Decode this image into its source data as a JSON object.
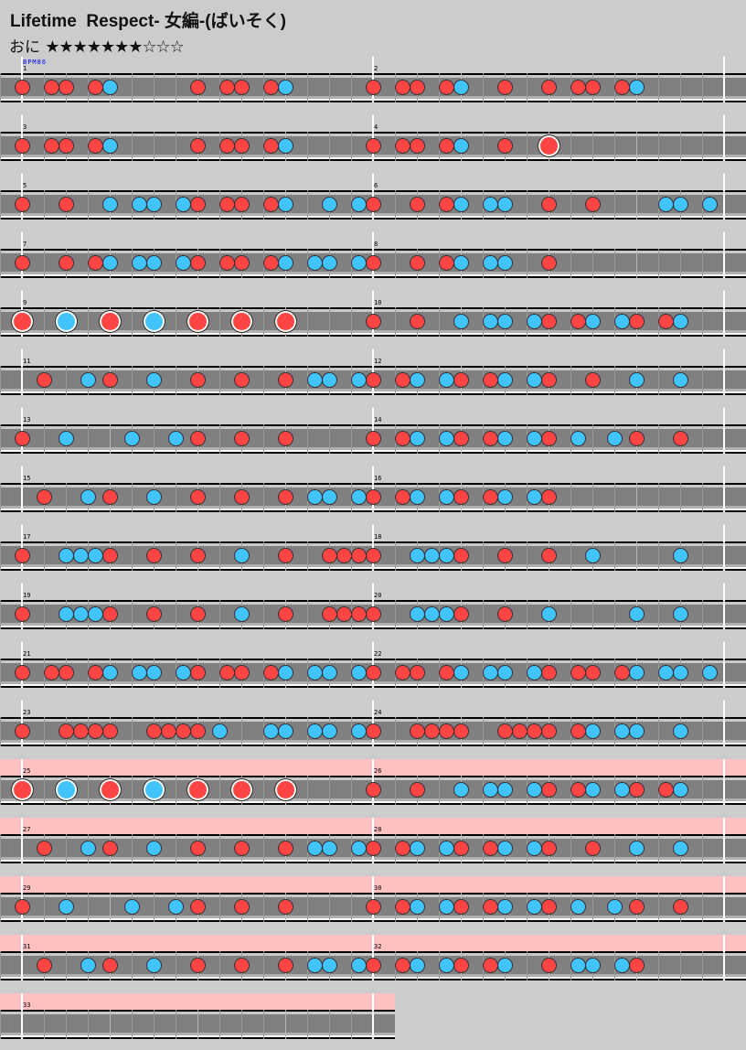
{
  "header": {
    "title": "Lifetime  Respect- 女編-(ばいそく)",
    "difficulty": "おに",
    "stars": {
      "filled": 7,
      "total": 10,
      "text": "★★★★★★★☆☆☆"
    }
  },
  "bpm_label": "BPM86",
  "colors": {
    "don": "#ff4444",
    "ka": "#44c4ff",
    "gogo_band": "#ffc0c0",
    "lane": "#808080",
    "background": "#cccccc"
  },
  "note_types": {
    "d": "don",
    "k": "ka",
    "D": "big-don",
    "K": "big-ka"
  },
  "divisions_per_measure": 48,
  "gogo_from_measure": 25,
  "measures": [
    {
      "num": "1",
      "notes": [
        [
          0,
          "d"
        ],
        [
          4,
          "d"
        ],
        [
          6,
          "d"
        ],
        [
          10,
          "d"
        ],
        [
          12,
          "k"
        ],
        [
          24,
          "d"
        ],
        [
          28,
          "d"
        ],
        [
          30,
          "d"
        ],
        [
          34,
          "d"
        ],
        [
          36,
          "k"
        ]
      ]
    },
    {
      "num": "2",
      "notes": [
        [
          0,
          "d"
        ],
        [
          4,
          "d"
        ],
        [
          6,
          "d"
        ],
        [
          10,
          "d"
        ],
        [
          12,
          "k"
        ],
        [
          18,
          "d"
        ],
        [
          24,
          "d"
        ],
        [
          28,
          "d"
        ],
        [
          30,
          "d"
        ],
        [
          34,
          "d"
        ],
        [
          36,
          "k"
        ]
      ]
    },
    {
      "num": "3",
      "notes": [
        [
          0,
          "d"
        ],
        [
          4,
          "d"
        ],
        [
          6,
          "d"
        ],
        [
          10,
          "d"
        ],
        [
          12,
          "k"
        ],
        [
          24,
          "d"
        ],
        [
          28,
          "d"
        ],
        [
          30,
          "d"
        ],
        [
          34,
          "d"
        ],
        [
          36,
          "k"
        ]
      ]
    },
    {
      "num": "4",
      "notes": [
        [
          0,
          "d"
        ],
        [
          4,
          "d"
        ],
        [
          6,
          "d"
        ],
        [
          10,
          "d"
        ],
        [
          12,
          "k"
        ],
        [
          18,
          "d"
        ],
        [
          24,
          "D"
        ]
      ]
    },
    {
      "num": "5",
      "notes": [
        [
          0,
          "d"
        ],
        [
          6,
          "d"
        ],
        [
          12,
          "k"
        ],
        [
          16,
          "k"
        ],
        [
          18,
          "k"
        ],
        [
          22,
          "k"
        ],
        [
          24,
          "d"
        ],
        [
          28,
          "d"
        ],
        [
          30,
          "d"
        ],
        [
          34,
          "d"
        ],
        [
          36,
          "k"
        ],
        [
          42,
          "k"
        ],
        [
          46,
          "k"
        ]
      ]
    },
    {
      "num": "6",
      "notes": [
        [
          0,
          "d"
        ],
        [
          6,
          "d"
        ],
        [
          10,
          "d"
        ],
        [
          12,
          "k"
        ],
        [
          16,
          "k"
        ],
        [
          18,
          "k"
        ],
        [
          24,
          "d"
        ],
        [
          30,
          "d"
        ],
        [
          40,
          "k"
        ],
        [
          42,
          "k"
        ],
        [
          46,
          "k"
        ]
      ]
    },
    {
      "num": "7",
      "notes": [
        [
          0,
          "d"
        ],
        [
          6,
          "d"
        ],
        [
          10,
          "d"
        ],
        [
          12,
          "k"
        ],
        [
          16,
          "k"
        ],
        [
          18,
          "k"
        ],
        [
          22,
          "k"
        ],
        [
          24,
          "d"
        ],
        [
          28,
          "d"
        ],
        [
          30,
          "d"
        ],
        [
          34,
          "d"
        ],
        [
          36,
          "k"
        ],
        [
          40,
          "k"
        ],
        [
          42,
          "k"
        ],
        [
          46,
          "k"
        ]
      ]
    },
    {
      "num": "8",
      "notes": [
        [
          0,
          "d"
        ],
        [
          6,
          "d"
        ],
        [
          10,
          "d"
        ],
        [
          12,
          "k"
        ],
        [
          16,
          "k"
        ],
        [
          18,
          "k"
        ],
        [
          24,
          "d"
        ]
      ]
    },
    {
      "num": "9",
      "notes": [
        [
          0,
          "D"
        ],
        [
          6,
          "K"
        ],
        [
          12,
          "D"
        ],
        [
          18,
          "K"
        ],
        [
          24,
          "D"
        ],
        [
          30,
          "D"
        ],
        [
          36,
          "D"
        ]
      ]
    },
    {
      "num": "10",
      "notes": [
        [
          0,
          "d"
        ],
        [
          6,
          "d"
        ],
        [
          12,
          "k"
        ],
        [
          16,
          "k"
        ],
        [
          18,
          "k"
        ],
        [
          22,
          "k"
        ],
        [
          24,
          "d"
        ],
        [
          28,
          "d"
        ],
        [
          30,
          "k"
        ],
        [
          34,
          "k"
        ],
        [
          36,
          "d"
        ],
        [
          40,
          "d"
        ],
        [
          42,
          "k"
        ]
      ]
    },
    {
      "num": "11",
      "notes": [
        [
          3,
          "d"
        ],
        [
          9,
          "k"
        ],
        [
          12,
          "d"
        ],
        [
          18,
          "k"
        ],
        [
          24,
          "d"
        ],
        [
          30,
          "d"
        ],
        [
          36,
          "d"
        ],
        [
          40,
          "k"
        ],
        [
          42,
          "k"
        ],
        [
          46,
          "k"
        ]
      ]
    },
    {
      "num": "12",
      "notes": [
        [
          0,
          "d"
        ],
        [
          4,
          "d"
        ],
        [
          6,
          "k"
        ],
        [
          10,
          "k"
        ],
        [
          12,
          "d"
        ],
        [
          16,
          "d"
        ],
        [
          18,
          "k"
        ],
        [
          22,
          "k"
        ],
        [
          24,
          "d"
        ],
        [
          30,
          "d"
        ],
        [
          36,
          "k"
        ],
        [
          42,
          "k"
        ]
      ]
    },
    {
      "num": "13",
      "notes": [
        [
          0,
          "d"
        ],
        [
          6,
          "k"
        ],
        [
          15,
          "k"
        ],
        [
          21,
          "k"
        ],
        [
          24,
          "d"
        ],
        [
          30,
          "d"
        ],
        [
          36,
          "d"
        ]
      ]
    },
    {
      "num": "14",
      "notes": [
        [
          0,
          "d"
        ],
        [
          4,
          "d"
        ],
        [
          6,
          "k"
        ],
        [
          10,
          "k"
        ],
        [
          12,
          "d"
        ],
        [
          16,
          "d"
        ],
        [
          18,
          "k"
        ],
        [
          22,
          "k"
        ],
        [
          24,
          "d"
        ],
        [
          28,
          "k"
        ],
        [
          33,
          "k"
        ],
        [
          36,
          "d"
        ],
        [
          42,
          "d"
        ]
      ]
    },
    {
      "num": "15",
      "notes": [
        [
          3,
          "d"
        ],
        [
          9,
          "k"
        ],
        [
          12,
          "d"
        ],
        [
          18,
          "k"
        ],
        [
          24,
          "d"
        ],
        [
          30,
          "d"
        ],
        [
          36,
          "d"
        ],
        [
          40,
          "k"
        ],
        [
          42,
          "k"
        ],
        [
          46,
          "k"
        ]
      ]
    },
    {
      "num": "16",
      "notes": [
        [
          0,
          "d"
        ],
        [
          4,
          "d"
        ],
        [
          6,
          "k"
        ],
        [
          10,
          "k"
        ],
        [
          12,
          "d"
        ],
        [
          16,
          "d"
        ],
        [
          18,
          "k"
        ],
        [
          22,
          "k"
        ],
        [
          24,
          "d"
        ]
      ]
    },
    {
      "num": "17",
      "notes": [
        [
          0,
          "d"
        ],
        [
          6,
          "k"
        ],
        [
          8,
          "k"
        ],
        [
          10,
          "k"
        ],
        [
          12,
          "d"
        ],
        [
          18,
          "d"
        ],
        [
          24,
          "d"
        ],
        [
          30,
          "k"
        ],
        [
          36,
          "d"
        ],
        [
          42,
          "d"
        ],
        [
          44,
          "d"
        ],
        [
          46,
          "d"
        ]
      ]
    },
    {
      "num": "18",
      "notes": [
        [
          0,
          "d"
        ],
        [
          6,
          "k"
        ],
        [
          8,
          "k"
        ],
        [
          10,
          "k"
        ],
        [
          12,
          "d"
        ],
        [
          18,
          "d"
        ],
        [
          24,
          "d"
        ],
        [
          30,
          "k"
        ],
        [
          42,
          "k"
        ]
      ]
    },
    {
      "num": "19",
      "notes": [
        [
          0,
          "d"
        ],
        [
          6,
          "k"
        ],
        [
          8,
          "k"
        ],
        [
          10,
          "k"
        ],
        [
          12,
          "d"
        ],
        [
          18,
          "d"
        ],
        [
          24,
          "d"
        ],
        [
          30,
          "k"
        ],
        [
          36,
          "d"
        ],
        [
          42,
          "d"
        ],
        [
          44,
          "d"
        ],
        [
          46,
          "d"
        ]
      ]
    },
    {
      "num": "20",
      "notes": [
        [
          0,
          "d"
        ],
        [
          6,
          "k"
        ],
        [
          8,
          "k"
        ],
        [
          10,
          "k"
        ],
        [
          12,
          "d"
        ],
        [
          18,
          "d"
        ],
        [
          24,
          "k"
        ],
        [
          36,
          "k"
        ],
        [
          42,
          "k"
        ]
      ]
    },
    {
      "num": "21",
      "notes": [
        [
          0,
          "d"
        ],
        [
          4,
          "d"
        ],
        [
          6,
          "d"
        ],
        [
          10,
          "d"
        ],
        [
          12,
          "k"
        ],
        [
          16,
          "k"
        ],
        [
          18,
          "k"
        ],
        [
          22,
          "k"
        ],
        [
          24,
          "d"
        ],
        [
          28,
          "d"
        ],
        [
          30,
          "d"
        ],
        [
          34,
          "d"
        ],
        [
          36,
          "k"
        ],
        [
          40,
          "k"
        ],
        [
          42,
          "k"
        ],
        [
          46,
          "k"
        ]
      ]
    },
    {
      "num": "22",
      "notes": [
        [
          0,
          "d"
        ],
        [
          4,
          "d"
        ],
        [
          6,
          "d"
        ],
        [
          10,
          "d"
        ],
        [
          12,
          "k"
        ],
        [
          16,
          "k"
        ],
        [
          18,
          "k"
        ],
        [
          22,
          "k"
        ],
        [
          24,
          "d"
        ],
        [
          28,
          "d"
        ],
        [
          30,
          "d"
        ],
        [
          34,
          "d"
        ],
        [
          36,
          "k"
        ],
        [
          40,
          "k"
        ],
        [
          42,
          "k"
        ],
        [
          46,
          "k"
        ]
      ]
    },
    {
      "num": "23",
      "notes": [
        [
          0,
          "d"
        ],
        [
          6,
          "d"
        ],
        [
          8,
          "d"
        ],
        [
          10,
          "d"
        ],
        [
          12,
          "d"
        ],
        [
          18,
          "d"
        ],
        [
          20,
          "d"
        ],
        [
          22,
          "d"
        ],
        [
          24,
          "d"
        ],
        [
          27,
          "k"
        ],
        [
          34,
          "k"
        ],
        [
          36,
          "k"
        ],
        [
          40,
          "k"
        ],
        [
          42,
          "k"
        ],
        [
          46,
          "k"
        ]
      ]
    },
    {
      "num": "24",
      "notes": [
        [
          0,
          "d"
        ],
        [
          6,
          "d"
        ],
        [
          8,
          "d"
        ],
        [
          10,
          "d"
        ],
        [
          12,
          "d"
        ],
        [
          18,
          "d"
        ],
        [
          20,
          "d"
        ],
        [
          22,
          "d"
        ],
        [
          24,
          "d"
        ],
        [
          28,
          "d"
        ],
        [
          30,
          "k"
        ],
        [
          34,
          "k"
        ],
        [
          36,
          "k"
        ],
        [
          42,
          "k"
        ]
      ]
    },
    {
      "num": "25",
      "notes": [
        [
          0,
          "D"
        ],
        [
          6,
          "K"
        ],
        [
          12,
          "D"
        ],
        [
          18,
          "K"
        ],
        [
          24,
          "D"
        ],
        [
          30,
          "D"
        ],
        [
          36,
          "D"
        ]
      ]
    },
    {
      "num": "26",
      "notes": [
        [
          0,
          "d"
        ],
        [
          6,
          "d"
        ],
        [
          12,
          "k"
        ],
        [
          16,
          "k"
        ],
        [
          18,
          "k"
        ],
        [
          22,
          "k"
        ],
        [
          24,
          "d"
        ],
        [
          28,
          "d"
        ],
        [
          30,
          "k"
        ],
        [
          34,
          "k"
        ],
        [
          36,
          "d"
        ],
        [
          40,
          "d"
        ],
        [
          42,
          "k"
        ]
      ]
    },
    {
      "num": "27",
      "notes": [
        [
          3,
          "d"
        ],
        [
          9,
          "k"
        ],
        [
          12,
          "d"
        ],
        [
          18,
          "k"
        ],
        [
          24,
          "d"
        ],
        [
          30,
          "d"
        ],
        [
          36,
          "d"
        ],
        [
          40,
          "k"
        ],
        [
          42,
          "k"
        ],
        [
          46,
          "k"
        ]
      ]
    },
    {
      "num": "28",
      "notes": [
        [
          0,
          "d"
        ],
        [
          4,
          "d"
        ],
        [
          6,
          "k"
        ],
        [
          10,
          "k"
        ],
        [
          12,
          "d"
        ],
        [
          16,
          "d"
        ],
        [
          18,
          "k"
        ],
        [
          22,
          "k"
        ],
        [
          24,
          "d"
        ],
        [
          30,
          "d"
        ],
        [
          36,
          "k"
        ],
        [
          42,
          "k"
        ]
      ]
    },
    {
      "num": "29",
      "notes": [
        [
          0,
          "d"
        ],
        [
          6,
          "k"
        ],
        [
          15,
          "k"
        ],
        [
          21,
          "k"
        ],
        [
          24,
          "d"
        ],
        [
          30,
          "d"
        ],
        [
          36,
          "d"
        ]
      ]
    },
    {
      "num": "30",
      "notes": [
        [
          0,
          "d"
        ],
        [
          4,
          "d"
        ],
        [
          6,
          "k"
        ],
        [
          10,
          "k"
        ],
        [
          12,
          "d"
        ],
        [
          16,
          "d"
        ],
        [
          18,
          "k"
        ],
        [
          22,
          "k"
        ],
        [
          24,
          "d"
        ],
        [
          28,
          "k"
        ],
        [
          33,
          "k"
        ],
        [
          36,
          "d"
        ],
        [
          42,
          "d"
        ]
      ]
    },
    {
      "num": "31",
      "notes": [
        [
          3,
          "d"
        ],
        [
          9,
          "k"
        ],
        [
          12,
          "d"
        ],
        [
          18,
          "k"
        ],
        [
          24,
          "d"
        ],
        [
          30,
          "d"
        ],
        [
          36,
          "d"
        ],
        [
          40,
          "k"
        ],
        [
          42,
          "k"
        ],
        [
          46,
          "k"
        ]
      ]
    },
    {
      "num": "32",
      "notes": [
        [
          0,
          "d"
        ],
        [
          4,
          "d"
        ],
        [
          6,
          "k"
        ],
        [
          10,
          "k"
        ],
        [
          12,
          "d"
        ],
        [
          16,
          "d"
        ],
        [
          18,
          "k"
        ],
        [
          24,
          "d"
        ],
        [
          28,
          "k"
        ],
        [
          30,
          "k"
        ],
        [
          34,
          "k"
        ],
        [
          36,
          "r"
        ]
      ]
    },
    {
      "num": "33",
      "notes": []
    }
  ]
}
